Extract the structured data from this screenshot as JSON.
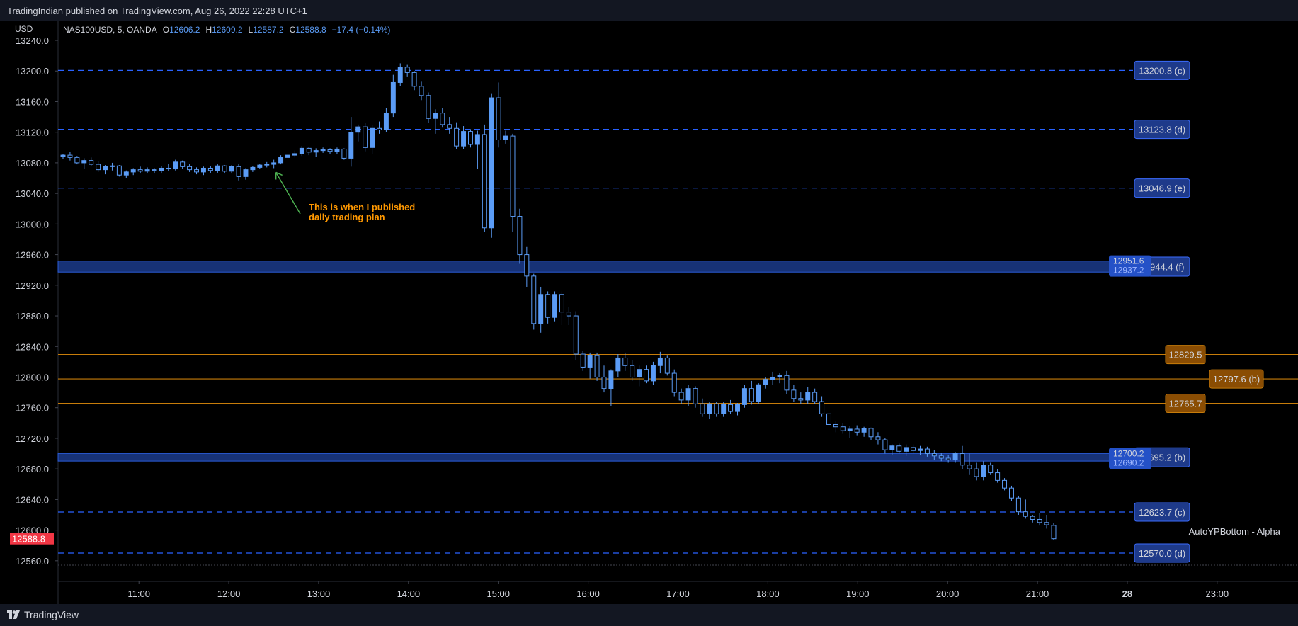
{
  "header": {
    "published": "TradingIndian published on TradingView.com, Aug 26, 2022 22:28 UTC+1"
  },
  "footer": {
    "brand": "TradingView"
  },
  "legend": {
    "symbol": "NAS100USD, 5, OANDA",
    "o_label": "O",
    "o": "12606.2",
    "h_label": "H",
    "h": "12609.2",
    "l_label": "L",
    "l": "12587.2",
    "c_label": "C",
    "c": "12588.8",
    "change": "−17.4 (−0.14%)"
  },
  "colors": {
    "candle": "#5b9cf6",
    "zone": "#2a5bd7",
    "orange": "#c77c0a",
    "last_price": "#f23645",
    "annotation": "#ff9800",
    "arrow": "#4caf50"
  },
  "chart_data": {
    "type": "candlestick",
    "currency_label": "USD",
    "ylim": [
      12533,
      13265
    ],
    "y_ticks": [
      {
        "v": 13240,
        "label": "13240.0"
      },
      {
        "v": 13200,
        "label": "13200.0"
      },
      {
        "v": 13160,
        "label": "13160.0"
      },
      {
        "v": 13120,
        "label": "13120.0"
      },
      {
        "v": 13080,
        "label": "13080.0"
      },
      {
        "v": 13040,
        "label": "13040.0"
      },
      {
        "v": 13000,
        "label": "13000.0"
      },
      {
        "v": 12960,
        "label": "12960.0"
      },
      {
        "v": 12920,
        "label": "12920.0"
      },
      {
        "v": 12880,
        "label": "12880.0"
      },
      {
        "v": 12840,
        "label": "12840.0"
      },
      {
        "v": 12800,
        "label": "12800.0"
      },
      {
        "v": 12760,
        "label": "12760.0"
      },
      {
        "v": 12720,
        "label": "12720.0"
      },
      {
        "v": 12680,
        "label": "12680.0"
      },
      {
        "v": 12640,
        "label": "12640.0"
      },
      {
        "v": 12600,
        "label": "12600.0"
      },
      {
        "v": 12560,
        "label": "12560.0"
      }
    ],
    "x_range_hours": [
      10.1,
      23.9
    ],
    "x_ticks": [
      {
        "h": 11,
        "label": "11:00"
      },
      {
        "h": 12,
        "label": "12:00"
      },
      {
        "h": 13,
        "label": "13:00"
      },
      {
        "h": 14,
        "label": "14:00"
      },
      {
        "h": 15,
        "label": "15:00"
      },
      {
        "h": 16,
        "label": "16:00"
      },
      {
        "h": 17,
        "label": "17:00"
      },
      {
        "h": 18,
        "label": "18:00"
      },
      {
        "h": 19,
        "label": "19:00"
      },
      {
        "h": 20,
        "label": "20:00"
      },
      {
        "h": 21,
        "label": "21:00"
      },
      {
        "h": 22,
        "label": "28",
        "bold": true
      },
      {
        "h": 23,
        "label": "23:00"
      }
    ],
    "candles": [
      [
        13088,
        13092,
        13085,
        13090
      ],
      [
        13090,
        13094,
        13083,
        13087
      ],
      [
        13087,
        13089,
        13078,
        13080
      ],
      [
        13080,
        13086,
        13072,
        13083
      ],
      [
        13083,
        13087,
        13076,
        13078
      ],
      [
        13078,
        13082,
        13068,
        13071
      ],
      [
        13071,
        13077,
        13065,
        13075
      ],
      [
        13075,
        13080,
        13070,
        13076
      ],
      [
        13076,
        13077,
        13062,
        13064
      ],
      [
        13064,
        13070,
        13060,
        13068
      ],
      [
        13068,
        13073,
        13064,
        13071
      ],
      [
        13071,
        13075,
        13066,
        13069
      ],
      [
        13069,
        13074,
        13066,
        13071
      ],
      [
        13071,
        13073,
        13066,
        13070
      ],
      [
        13070,
        13076,
        13066,
        13073
      ],
      [
        13073,
        13079,
        13069,
        13072
      ],
      [
        13072,
        13084,
        13070,
        13081
      ],
      [
        13081,
        13083,
        13072,
        13075
      ],
      [
        13075,
        13078,
        13068,
        13071
      ],
      [
        13071,
        13074,
        13065,
        13068
      ],
      [
        13068,
        13075,
        13064,
        13073
      ],
      [
        13073,
        13076,
        13067,
        13070
      ],
      [
        13070,
        13078,
        13067,
        13076
      ],
      [
        13076,
        13077,
        13066,
        13069
      ],
      [
        13069,
        13077,
        13066,
        13075
      ],
      [
        13075,
        13078,
        13057,
        13062
      ],
      [
        13062,
        13073,
        13058,
        13071
      ],
      [
        13071,
        13076,
        13068,
        13074
      ],
      [
        13074,
        13079,
        13072,
        13077
      ],
      [
        13077,
        13081,
        13074,
        13078
      ],
      [
        13078,
        13084,
        13073,
        13080
      ],
      [
        13080,
        13090,
        13078,
        13087
      ],
      [
        13087,
        13093,
        13084,
        13090
      ],
      [
        13090,
        13096,
        13087,
        13092
      ],
      [
        13092,
        13102,
        13089,
        13099
      ],
      [
        13099,
        13101,
        13090,
        13094
      ],
      [
        13094,
        13099,
        13088,
        13096
      ],
      [
        13096,
        13100,
        13093,
        13097
      ],
      [
        13097,
        13099,
        13092,
        13095
      ],
      [
        13095,
        13100,
        13091,
        13098
      ],
      [
        13098,
        13099,
        13084,
        13086
      ],
      [
        13086,
        13140,
        13075,
        13120
      ],
      [
        13120,
        13130,
        13108,
        13127
      ],
      [
        13127,
        13132,
        13095,
        13100
      ],
      [
        13100,
        13130,
        13092,
        13125
      ],
      [
        13125,
        13134,
        13118,
        13123
      ],
      [
        13123,
        13152,
        13120,
        13145
      ],
      [
        13145,
        13195,
        13140,
        13185
      ],
      [
        13185,
        13210,
        13180,
        13205
      ],
      [
        13205,
        13208,
        13192,
        13198
      ],
      [
        13198,
        13200,
        13175,
        13180
      ],
      [
        13180,
        13186,
        13162,
        13168
      ],
      [
        13168,
        13172,
        13132,
        13138
      ],
      [
        13138,
        13150,
        13118,
        13145
      ],
      [
        13145,
        13152,
        13126,
        13130
      ],
      [
        13130,
        13140,
        13118,
        13125
      ],
      [
        13125,
        13133,
        13098,
        13102
      ],
      [
        13102,
        13128,
        13098,
        13121
      ],
      [
        13121,
        13124,
        13100,
        13104
      ],
      [
        13104,
        13122,
        13072,
        13117
      ],
      [
        13117,
        13130,
        12990,
        12995
      ],
      [
        12995,
        13170,
        12982,
        13165
      ],
      [
        13165,
        13185,
        13100,
        13110
      ],
      [
        13110,
        13122,
        13105,
        13115
      ],
      [
        13115,
        13118,
        12990,
        13010
      ],
      [
        13010,
        13020,
        12948,
        12960
      ],
      [
        12960,
        12970,
        12918,
        12932
      ],
      [
        12932,
        12935,
        12862,
        12870
      ],
      [
        12870,
        12918,
        12858,
        12908
      ],
      [
        12908,
        12912,
        12870,
        12878
      ],
      [
        12878,
        12912,
        12872,
        12908
      ],
      [
        12908,
        12912,
        12868,
        12885
      ],
      [
        12885,
        12892,
        12868,
        12880
      ],
      [
        12880,
        12886,
        12822,
        12830
      ],
      [
        12830,
        12834,
        12808,
        12813
      ],
      [
        12813,
        12832,
        12798,
        12828
      ],
      [
        12828,
        12832,
        12795,
        12800
      ],
      [
        12800,
        12815,
        12780,
        12785
      ],
      [
        12785,
        12810,
        12762,
        12808
      ],
      [
        12808,
        12830,
        12800,
        12825
      ],
      [
        12825,
        12832,
        12808,
        12815
      ],
      [
        12815,
        12822,
        12795,
        12800
      ],
      [
        12800,
        12815,
        12788,
        12810
      ],
      [
        12810,
        12815,
        12792,
        12795
      ],
      [
        12795,
        12820,
        12790,
        12815
      ],
      [
        12815,
        12833,
        12805,
        12825
      ],
      [
        12825,
        12828,
        12802,
        12805
      ],
      [
        12805,
        12810,
        12775,
        12780
      ],
      [
        12780,
        12785,
        12765,
        12770
      ],
      [
        12770,
        12790,
        12762,
        12785
      ],
      [
        12785,
        12788,
        12760,
        12765
      ],
      [
        12765,
        12772,
        12748,
        12752
      ],
      [
        12752,
        12767,
        12745,
        12765
      ],
      [
        12765,
        12768,
        12748,
        12752
      ],
      [
        12752,
        12767,
        12748,
        12764
      ],
      [
        12764,
        12770,
        12752,
        12755
      ],
      [
        12755,
        12766,
        12750,
        12764
      ],
      [
        12764,
        12790,
        12760,
        12785
      ],
      [
        12785,
        12795,
        12764,
        12768
      ],
      [
        12768,
        12792,
        12765,
        12790
      ],
      [
        12790,
        12800,
        12785,
        12797
      ],
      [
        12797,
        12807,
        12790,
        12800
      ],
      [
        12800,
        12805,
        12792,
        12802
      ],
      [
        12802,
        12808,
        12778,
        12783
      ],
      [
        12783,
        12790,
        12768,
        12772
      ],
      [
        12772,
        12780,
        12765,
        12770
      ],
      [
        12770,
        12787,
        12765,
        12780
      ],
      [
        12780,
        12785,
        12765,
        12768
      ],
      [
        12768,
        12775,
        12748,
        12752
      ],
      [
        12752,
        12755,
        12732,
        12738
      ],
      [
        12738,
        12742,
        12728,
        12735
      ],
      [
        12735,
        12740,
        12726,
        12730
      ],
      [
        12730,
        12736,
        12720,
        12732
      ],
      [
        12732,
        12737,
        12724,
        12728
      ],
      [
        12728,
        12735,
        12722,
        12733
      ],
      [
        12733,
        12734,
        12718,
        12722
      ],
      [
        12722,
        12728,
        12712,
        12718
      ],
      [
        12718,
        12720,
        12700,
        12705
      ],
      [
        12705,
        12712,
        12698,
        12710
      ],
      [
        12710,
        12713,
        12700,
        12703
      ],
      [
        12703,
        12712,
        12697,
        12708
      ],
      [
        12708,
        12712,
        12700,
        12704
      ],
      [
        12704,
        12710,
        12698,
        12706
      ],
      [
        12706,
        12709,
        12696,
        12700
      ],
      [
        12700,
        12705,
        12692,
        12697
      ],
      [
        12697,
        12701,
        12690,
        12694
      ],
      [
        12694,
        12698,
        12688,
        12692
      ],
      [
        12692,
        12702,
        12688,
        12700
      ],
      [
        12700,
        12710,
        12680,
        12685
      ],
      [
        12685,
        12700,
        12672,
        12680
      ],
      [
        12680,
        12688,
        12665,
        12670
      ],
      [
        12670,
        12690,
        12665,
        12685
      ],
      [
        12685,
        12688,
        12672,
        12675
      ],
      [
        12675,
        12680,
        12662,
        12665
      ],
      [
        12665,
        12668,
        12652,
        12655
      ],
      [
        12655,
        12658,
        12638,
        12642
      ],
      [
        12642,
        12645,
        12620,
        12624
      ],
      [
        12624,
        12640,
        12615,
        12618
      ],
      [
        12618,
        12620,
        12610,
        12614
      ],
      [
        12614,
        12622,
        12606,
        12610
      ],
      [
        12610,
        12620,
        12602,
        12607
      ],
      [
        12606.2,
        12609.2,
        12587.2,
        12588.8
      ]
    ],
    "horizontal_levels": [
      {
        "value": 13200.8,
        "label": "13200.8 (c)",
        "style": "dashed"
      },
      {
        "value": 13123.8,
        "label": "13123.8 (d)",
        "style": "dashed"
      },
      {
        "value": 13046.9,
        "label": "13046.9 (e)",
        "style": "dashed"
      },
      {
        "value": 12829.5,
        "label": "12829.5",
        "style": "orange"
      },
      {
        "value": 12797.6,
        "label": "12797.6 (b)",
        "style": "orange"
      },
      {
        "value": 12765.7,
        "label": "12765.7",
        "style": "orange"
      },
      {
        "value": 12623.7,
        "label": "12623.7 (c)",
        "style": "dashed"
      },
      {
        "value": 12570.0,
        "label": "12570.0 (d)",
        "style": "dashed"
      }
    ],
    "zones": [
      {
        "top": 12951.6,
        "bottom": 12937.2,
        "top_label": "12951.6",
        "bottom_label": "12937.2",
        "tag": "12944.4 (f)"
      },
      {
        "top": 12700.2,
        "bottom": 12690.2,
        "top_label": "12700.2",
        "bottom_label": "12690.2",
        "tag": "12695.2 (b)"
      }
    ],
    "last_price": {
      "value": 12588.8,
      "label": "12588.8"
    },
    "annotation": {
      "text_lines": [
        "This is when I published",
        "daily trading plan"
      ],
      "candle_index": 30
    },
    "indicator_label": "AutoYPBottom - Alpha"
  }
}
